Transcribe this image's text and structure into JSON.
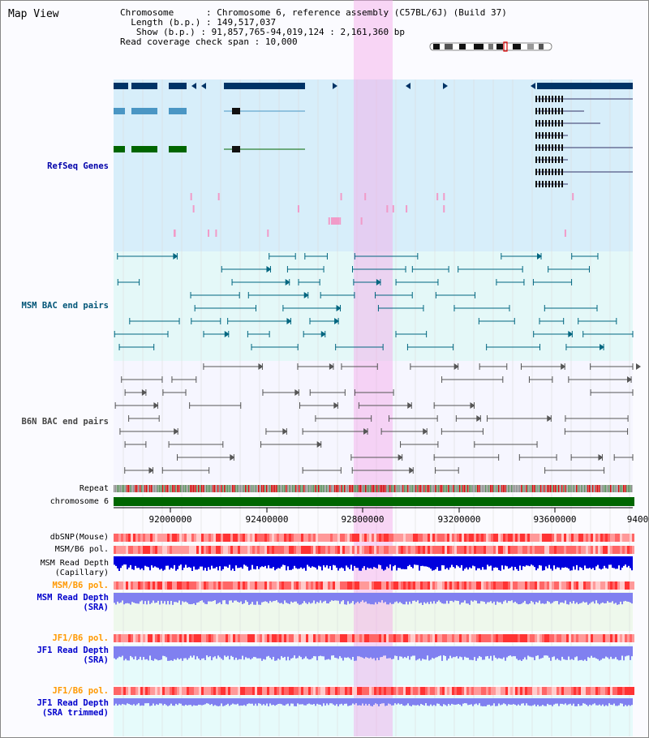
{
  "title": "Map View",
  "info": {
    "line1_key": "Chromosome",
    "line1_val": "Chromosome 6, reference assembly (C57BL/6J) (Build 37)",
    "line2_key": "Length (b.p.)",
    "line2_val": "149,517,037",
    "line3_key": "Show (b.p.)",
    "line3_val": "91,857,765-94,019,124 : 2,161,360 bp",
    "line4_key": "Read coverage check span",
    "line4_val": "10,000"
  },
  "tracks": {
    "refseq": {
      "label": "RefSeq Genes",
      "color": "#0000aa"
    },
    "msm_bac": {
      "label": "MSM BAC end pairs",
      "color": "#005577"
    },
    "b6n_bac": {
      "label": "B6N BAC end pairs",
      "color": "#444444"
    },
    "repeat": {
      "label": "Repeat"
    },
    "chromosome": {
      "label": "chromosome 6"
    },
    "dbsnp": {
      "label": "dbSNP(Mouse)"
    },
    "msm_b6_pol1": {
      "label": "MSM/B6 pol."
    },
    "msm_read_cap": {
      "label_1": "MSM Read Depth",
      "label_2": "(Capillary)"
    },
    "msm_b6_pol2": {
      "label": "MSM/B6 pol.",
      "color": "#ff9900"
    },
    "msm_read_sra": {
      "label_1": "MSM Read Depth",
      "label_2": "(SRA)",
      "color": "#0000cc"
    },
    "jf1_pol1": {
      "label": "JF1/B6 pol.",
      "color": "#ff9900"
    },
    "jf1_read_sra": {
      "label_1": "JF1 Read Depth",
      "label_2": "(SRA)",
      "color": "#0000cc"
    },
    "jf1_pol2": {
      "label": "JF1/B6 pol.",
      "color": "#ff9900"
    },
    "jf1_read_trim": {
      "label_1": "JF1 Read Depth",
      "label_2": "(SRA trimmed)",
      "color": "#0000cc"
    }
  },
  "axis": {
    "ticks": [
      "92000000",
      "92400000",
      "92800000",
      "93200000",
      "93600000",
      "9400"
    ]
  }
}
